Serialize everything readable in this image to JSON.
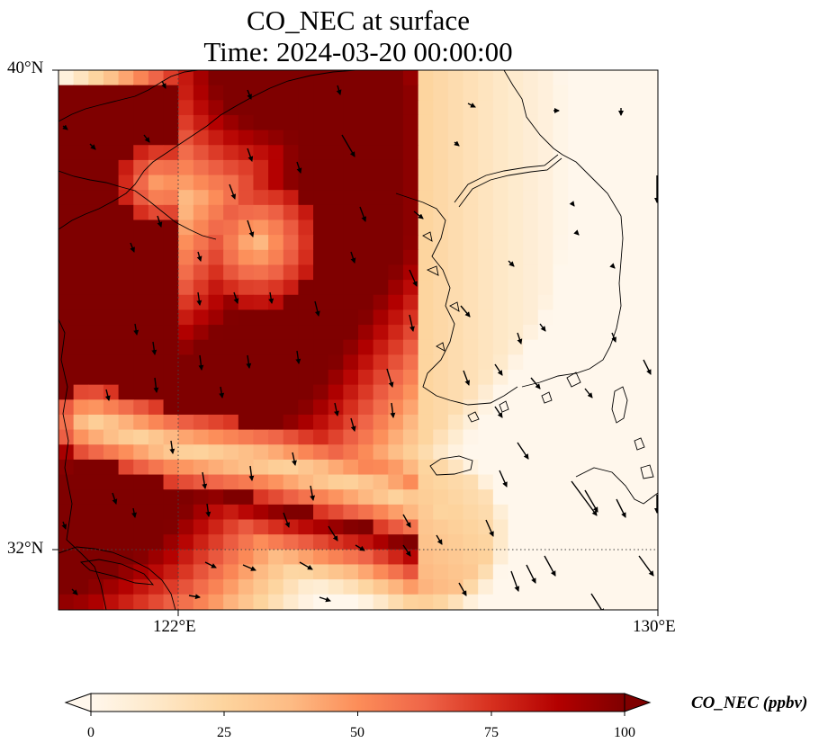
{
  "title_line1": "CO_NEC at surface",
  "title_line2": "Time: 2024-03-20 00:00:00",
  "lat_labels": [
    "40°N",
    "32°N"
  ],
  "lon_labels": [
    "122°E",
    "130°E"
  ],
  "map_extent": {
    "lon_min": 120,
    "lon_max": 130,
    "lat_min": 31,
    "lat_max": 40
  },
  "colorbar": {
    "label": "CO_NEC (ppbv)",
    "min": 0,
    "max": 100,
    "ticks": [
      "0",
      "25",
      "50",
      "75",
      "100"
    ],
    "colormap": "OrRd",
    "extend": "both"
  },
  "colors": {
    "low": "#fff7ec",
    "mid": "#fdbb84",
    "high": "#7f0000",
    "coastline": "#000000",
    "gridline": "#444444"
  },
  "icons": {
    "wind": "wind-vector-arrow-icon"
  }
}
